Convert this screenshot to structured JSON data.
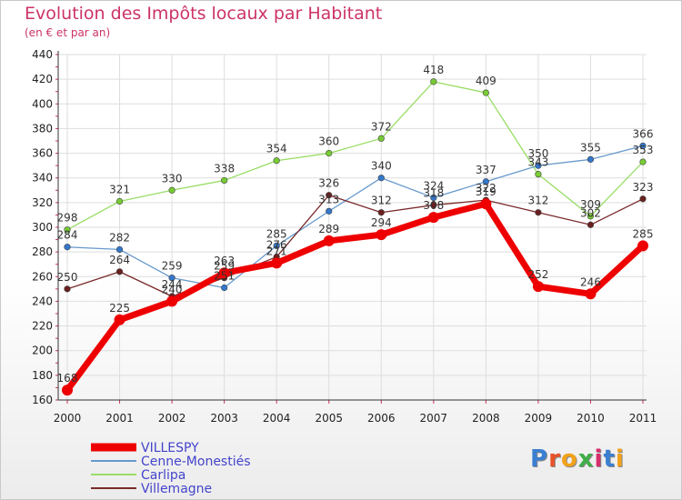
{
  "title": "Evolution des Impôts locaux par Habitant",
  "subtitle": "(en € et par an)",
  "logo": {
    "text": "Proxiti",
    "colors": [
      "#3a7fd1",
      "#e8532a",
      "#f2a21b",
      "#3fae49",
      "#d62f6b",
      "#3a7fd1",
      "#f2a21b"
    ]
  },
  "chart_data": {
    "type": "line",
    "title": "Evolution des Impôts locaux par Habitant",
    "subtitle": "(en € et par an)",
    "xlabel": "",
    "ylabel": "",
    "ylim": [
      160,
      440
    ],
    "yticks": [
      160,
      180,
      200,
      220,
      240,
      260,
      280,
      300,
      320,
      340,
      360,
      380,
      400,
      420,
      440
    ],
    "x": [
      "2000",
      "2001",
      "2002",
      "2003",
      "2004",
      "2005",
      "2006",
      "2007",
      "2008",
      "2009",
      "2010",
      "2011"
    ],
    "grid": true,
    "legend": "bottom-left",
    "series": [
      {
        "name": "Carlipa",
        "color": "#99dd66",
        "marker": "#77cc33",
        "width": 1.3,
        "values": [
          298,
          321,
          330,
          338,
          354,
          360,
          372,
          418,
          409,
          343,
          309,
          353
        ]
      },
      {
        "name": "Cenne-Monestiés",
        "color": "#6699cc",
        "marker": "#3377cc",
        "width": 1.3,
        "values": [
          284,
          282,
          259,
          251,
          285,
          313,
          340,
          324,
          337,
          350,
          355,
          366
        ]
      },
      {
        "name": "Villemagne",
        "color": "#7a2a2a",
        "marker": "#6a1f1f",
        "width": 1.3,
        "values": [
          250,
          264,
          244,
          259,
          276,
          326,
          312,
          318,
          322,
          312,
          302,
          323
        ]
      },
      {
        "name": "VILLESPY",
        "color": "#ee0000",
        "marker": "#ee0000",
        "width": 7,
        "values": [
          168,
          225,
          240,
          263,
          271,
          289,
          294,
          308,
          319,
          252,
          246,
          285
        ]
      }
    ],
    "legend_order": [
      "VILLESPY",
      "Cenne-Monestiés",
      "Carlipa",
      "Villemagne"
    ]
  }
}
